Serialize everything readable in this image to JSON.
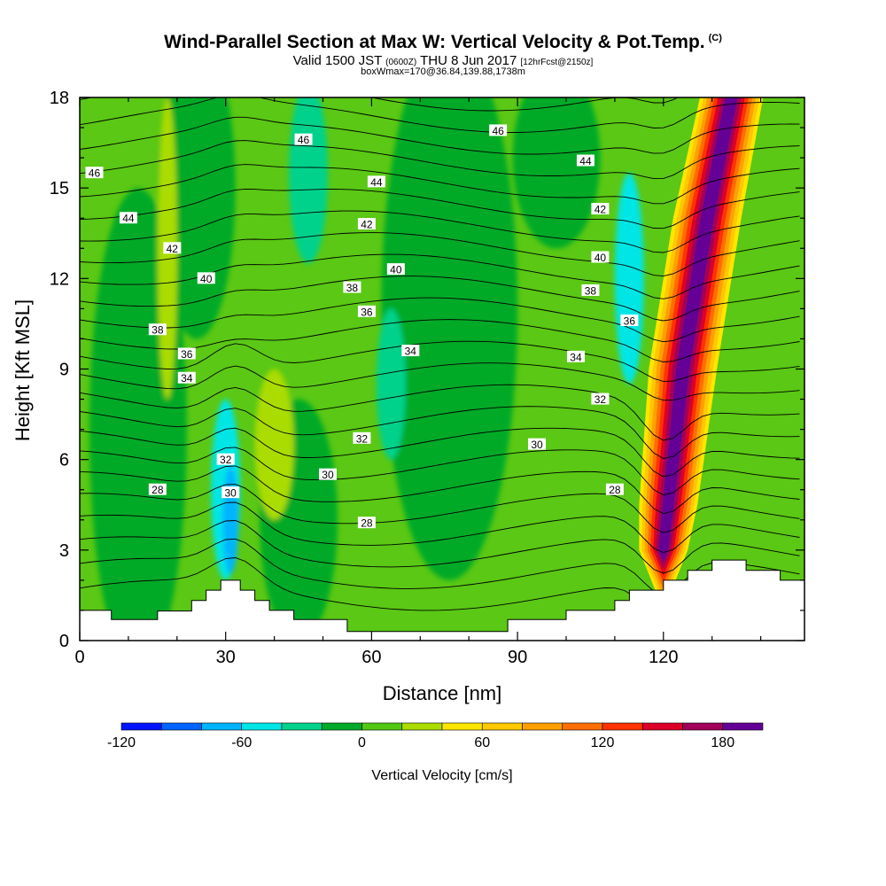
{
  "header": {
    "title": "Wind-Parallel Section at Max W: Vertical Velocity & Pot.Temp.",
    "copyright": "(C)",
    "valid_prefix": "Valid 1500 JST",
    "valid_utc": "(0600Z)",
    "valid_date": "THU 8 Jun 2017",
    "forecast": "[12hrFcst@2150z]",
    "box_info": "boxWmax=170@36.84,139.88,1738m"
  },
  "chart_data": {
    "type": "heatmap",
    "xlabel": "Distance [nm]",
    "ylabel": "Height [Kft MSL]",
    "xlim": [
      0,
      149
    ],
    "ylim": [
      0,
      18
    ],
    "x_ticks": [
      0,
      30,
      60,
      90,
      120
    ],
    "y_ticks": [
      0,
      3,
      6,
      9,
      12,
      15,
      18
    ],
    "colorbar": {
      "label": "Vertical Velocity [cm/s]",
      "levels": [
        -120,
        -100,
        -80,
        -60,
        -40,
        -20,
        0,
        20,
        40,
        60,
        80,
        100,
        120,
        140,
        160,
        180,
        200
      ],
      "tick_labels": [
        "-120",
        "-60",
        "0",
        "60",
        "120",
        "180"
      ],
      "colors": [
        "#0014ff",
        "#0064ff",
        "#00b4ff",
        "#00e6e6",
        "#00d28c",
        "#00aa28",
        "#50c814",
        "#aadc00",
        "#ffe600",
        "#ffc800",
        "#ffa000",
        "#ff6e00",
        "#ff3200",
        "#dc0028",
        "#a0005a",
        "#640096"
      ]
    },
    "background_color": "#5ac814",
    "features": [
      {
        "x": 12,
        "y": 7,
        "rx": 10,
        "ry": 8,
        "value": -5
      },
      {
        "x": 24,
        "y": 15,
        "rx": 8,
        "ry": 5,
        "value": -5
      },
      {
        "x": 76,
        "y": 11,
        "rx": 14,
        "ry": 9,
        "value": -5
      },
      {
        "x": 45,
        "y": 4,
        "rx": 8,
        "ry": 4,
        "value": -5
      },
      {
        "x": 98,
        "y": 16,
        "rx": 9,
        "ry": 3,
        "value": -5
      },
      {
        "x": 47,
        "y": 15.5,
        "rx": 4,
        "ry": 3,
        "value": -25
      },
      {
        "x": 64,
        "y": 8.5,
        "rx": 3,
        "ry": 2.5,
        "value": -25
      },
      {
        "x": 18,
        "y": 13,
        "rx": 2,
        "ry": 5,
        "value": 25
      },
      {
        "x": 40,
        "y": 6.5,
        "rx": 4,
        "ry": 2.5,
        "value": 25
      },
      {
        "x": 30,
        "y": 5,
        "rx": 3,
        "ry": 3,
        "value": -45
      },
      {
        "x": 31,
        "y": 4,
        "rx": 1.6,
        "ry": 1.8,
        "value": -65
      },
      {
        "x": 113,
        "y": 12,
        "rx": 3,
        "ry": 3.5,
        "value": -45
      }
    ],
    "updraft": [
      {
        "x": 134,
        "y": 18,
        "w": 6.5
      },
      {
        "x": 129,
        "y": 14,
        "w": 7
      },
      {
        "x": 124,
        "y": 9,
        "w": 7
      },
      {
        "x": 121,
        "y": 4.5,
        "w": 6
      },
      {
        "x": 120,
        "y": 3,
        "w": 5
      }
    ],
    "updraft_colors": [
      "#ffe600",
      "#ffc800",
      "#ffa000",
      "#ff6e00",
      "#ff3200",
      "#dc0028",
      "#a0005a",
      "#640096"
    ],
    "contour_labels": [
      {
        "text": "46",
        "x": 3,
        "y": 15.5
      },
      {
        "text": "44",
        "x": 10,
        "y": 14
      },
      {
        "text": "42",
        "x": 19,
        "y": 13
      },
      {
        "text": "40",
        "x": 26,
        "y": 12
      },
      {
        "text": "38",
        "x": 16,
        "y": 10.3
      },
      {
        "text": "36",
        "x": 22,
        "y": 9.5
      },
      {
        "text": "34",
        "x": 22,
        "y": 8.7
      },
      {
        "text": "32",
        "x": 30,
        "y": 6
      },
      {
        "text": "30",
        "x": 31,
        "y": 4.9
      },
      {
        "text": "28",
        "x": 16,
        "y": 5
      },
      {
        "text": "46",
        "x": 46,
        "y": 16.6
      },
      {
        "text": "44",
        "x": 61,
        "y": 15.2
      },
      {
        "text": "42",
        "x": 59,
        "y": 13.8
      },
      {
        "text": "40",
        "x": 65,
        "y": 12.3
      },
      {
        "text": "38",
        "x": 56,
        "y": 11.7
      },
      {
        "text": "36",
        "x": 59,
        "y": 10.9
      },
      {
        "text": "34",
        "x": 68,
        "y": 9.6
      },
      {
        "text": "32",
        "x": 58,
        "y": 6.7
      },
      {
        "text": "30",
        "x": 51,
        "y": 5.5
      },
      {
        "text": "28",
        "x": 59,
        "y": 3.9
      },
      {
        "text": "46",
        "x": 86,
        "y": 16.9
      },
      {
        "text": "44",
        "x": 104,
        "y": 15.9
      },
      {
        "text": "42",
        "x": 107,
        "y": 14.3
      },
      {
        "text": "40",
        "x": 107,
        "y": 12.7
      },
      {
        "text": "38",
        "x": 105,
        "y": 11.6
      },
      {
        "text": "36",
        "x": 113,
        "y": 10.6
      },
      {
        "text": "34",
        "x": 102,
        "y": 9.4
      },
      {
        "text": "32",
        "x": 107,
        "y": 8
      },
      {
        "text": "30",
        "x": 94,
        "y": 6.5
      },
      {
        "text": "28",
        "x": 110,
        "y": 5
      }
    ],
    "terrain": [
      [
        0,
        1
      ],
      [
        6.5,
        1
      ],
      [
        6.5,
        0.7
      ],
      [
        16,
        0.7
      ],
      [
        16,
        0.98
      ],
      [
        23,
        0.98
      ],
      [
        23,
        1.33
      ],
      [
        26,
        1.33
      ],
      [
        26,
        1.67
      ],
      [
        29,
        1.67
      ],
      [
        29,
        2.0
      ],
      [
        33,
        2.0
      ],
      [
        33,
        1.67
      ],
      [
        36,
        1.67
      ],
      [
        36,
        1.33
      ],
      [
        39,
        1.33
      ],
      [
        39,
        1.0
      ],
      [
        44,
        1.0
      ],
      [
        44,
        0.7
      ],
      [
        55,
        0.7
      ],
      [
        55,
        0.3
      ],
      [
        63,
        0.3
      ],
      [
        63,
        0.3
      ],
      [
        88,
        0.3
      ],
      [
        88,
        0.7
      ],
      [
        100,
        0.7
      ],
      [
        100,
        1.0
      ],
      [
        110,
        1.0
      ],
      [
        110,
        1.33
      ],
      [
        113,
        1.33
      ],
      [
        113,
        1.67
      ],
      [
        120,
        1.67
      ],
      [
        120,
        2.0
      ],
      [
        125,
        2.0
      ],
      [
        125,
        2.33
      ],
      [
        130,
        2.33
      ],
      [
        130,
        2.67
      ],
      [
        137,
        2.67
      ],
      [
        137,
        2.33
      ],
      [
        144,
        2.33
      ],
      [
        144,
        2.0
      ],
      [
        149,
        2.0
      ]
    ]
  }
}
